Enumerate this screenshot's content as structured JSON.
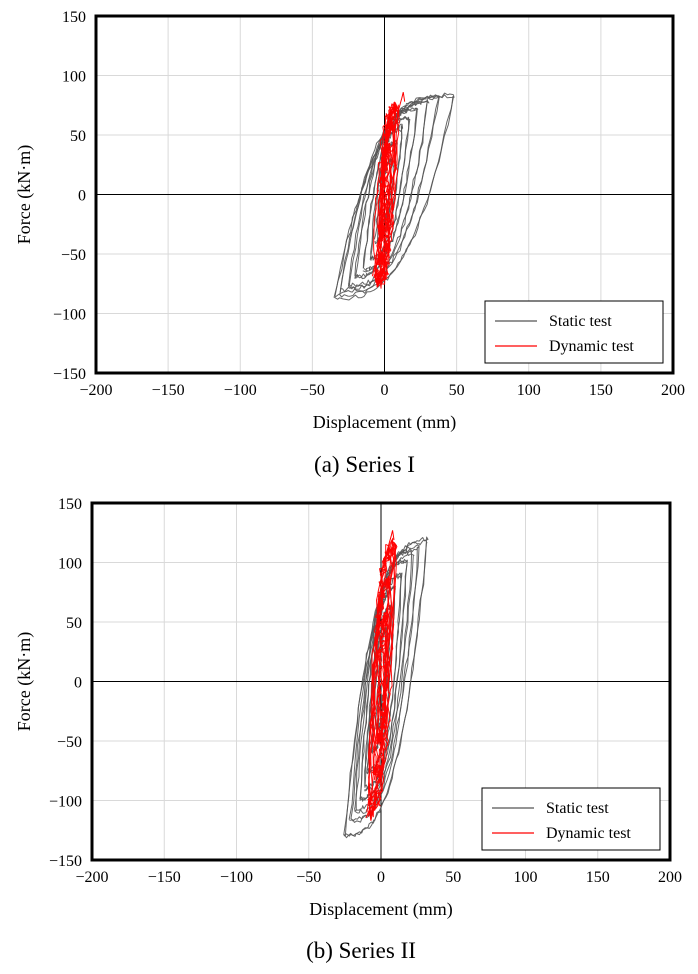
{
  "chart_data": [
    {
      "type": "line",
      "caption": "(a) Series I",
      "xlabel": "Displacement (mm)",
      "ylabel": "Force (kN·m)",
      "xlim": [
        -200,
        200
      ],
      "ylim": [
        -150,
        150
      ],
      "xticks": [
        -200,
        -150,
        -100,
        -50,
        0,
        50,
        100,
        150,
        200
      ],
      "yticks": [
        -150,
        -100,
        -50,
        0,
        50,
        100,
        150
      ],
      "xtick_labels": [
        "−200",
        "−150",
        "−100",
        "−50",
        "0",
        "50",
        "100",
        "150",
        "200"
      ],
      "ytick_labels": [
        "−150",
        "−100",
        "−50",
        "0",
        "50",
        "100",
        "150"
      ],
      "grid": true,
      "legend_position": "bottom-right",
      "series": [
        {
          "name": "Static test",
          "color": "#555555",
          "loops": [
            {
              "xmin": -3,
              "xmax": 5,
              "ymin": -25,
              "ymax": 30
            },
            {
              "xmin": -6,
              "xmax": 8,
              "ymin": -40,
              "ymax": 45
            },
            {
              "xmin": -10,
              "xmax": 12,
              "ymin": -55,
              "ymax": 58
            },
            {
              "xmin": -15,
              "xmax": 17,
              "ymin": -65,
              "ymax": 66
            },
            {
              "xmin": -20,
              "xmax": 23,
              "ymin": -72,
              "ymax": 72
            },
            {
              "xmin": -25,
              "xmax": 30,
              "ymin": -78,
              "ymax": 78
            },
            {
              "xmin": -30,
              "xmax": 38,
              "ymin": -84,
              "ymax": 84
            },
            {
              "xmin": -34,
              "xmax": 48,
              "ymin": -88,
              "ymax": 87
            }
          ]
        },
        {
          "name": "Dynamic test",
          "color": "#ff0000",
          "loops": [
            {
              "xmin": -2,
              "xmax": 3,
              "ymin": -35,
              "ymax": 40
            },
            {
              "xmin": -4,
              "xmax": 5,
              "ymin": -55,
              "ymax": 60
            },
            {
              "xmin": -6,
              "xmax": 8,
              "ymin": -70,
              "ymax": 72
            },
            {
              "xmin": -5,
              "xmax": 9,
              "ymin": -75,
              "ymax": 75
            }
          ],
          "peak": [
            13,
            86
          ],
          "trough": [
            -5,
            -78
          ]
        }
      ]
    },
    {
      "type": "line",
      "caption": "(b) Series II",
      "xlabel": "Displacement (mm)",
      "ylabel": "Force (kN·m)",
      "xlim": [
        -200,
        200
      ],
      "ylim": [
        -150,
        150
      ],
      "xticks": [
        -200,
        -150,
        -100,
        -50,
        0,
        50,
        100,
        150,
        200
      ],
      "yticks": [
        -150,
        -100,
        -50,
        0,
        50,
        100,
        150
      ],
      "xtick_labels": [
        "−200",
        "−150",
        "−100",
        "−50",
        "0",
        "50",
        "100",
        "150",
        "200"
      ],
      "ytick_labels": [
        "−150",
        "−100",
        "−50",
        "0",
        "50",
        "100",
        "150"
      ],
      "grid": true,
      "legend_position": "bottom-right",
      "series": [
        {
          "name": "Static test",
          "color": "#555555",
          "loops": [
            {
              "xmin": -3,
              "xmax": 4,
              "ymin": -40,
              "ymax": 45
            },
            {
              "xmin": -6,
              "xmax": 7,
              "ymin": -60,
              "ymax": 65
            },
            {
              "xmin": -9,
              "xmax": 10,
              "ymin": -78,
              "ymax": 80
            },
            {
              "xmin": -12,
              "xmax": 14,
              "ymin": -92,
              "ymax": 92
            },
            {
              "xmin": -15,
              "xmax": 18,
              "ymin": -103,
              "ymax": 102
            },
            {
              "xmin": -18,
              "xmax": 22,
              "ymin": -113,
              "ymax": 110
            },
            {
              "xmin": -21,
              "xmax": 26,
              "ymin": -122,
              "ymax": 116
            },
            {
              "xmin": -25,
              "xmax": 32,
              "ymin": -134,
              "ymax": 120
            }
          ]
        },
        {
          "name": "Dynamic test",
          "color": "#ff0000",
          "loops": [
            {
              "xmin": -3,
              "xmax": 3,
              "ymin": -50,
              "ymax": 55
            },
            {
              "xmin": -5,
              "xmax": 5,
              "ymin": -80,
              "ymax": 85
            },
            {
              "xmin": -7,
              "xmax": 8,
              "ymin": -105,
              "ymax": 110
            },
            {
              "xmin": -8,
              "xmax": 10,
              "ymin": -112,
              "ymax": 118
            }
          ],
          "peak": [
            8,
            127
          ],
          "trough": [
            -7,
            -117
          ]
        }
      ]
    }
  ]
}
